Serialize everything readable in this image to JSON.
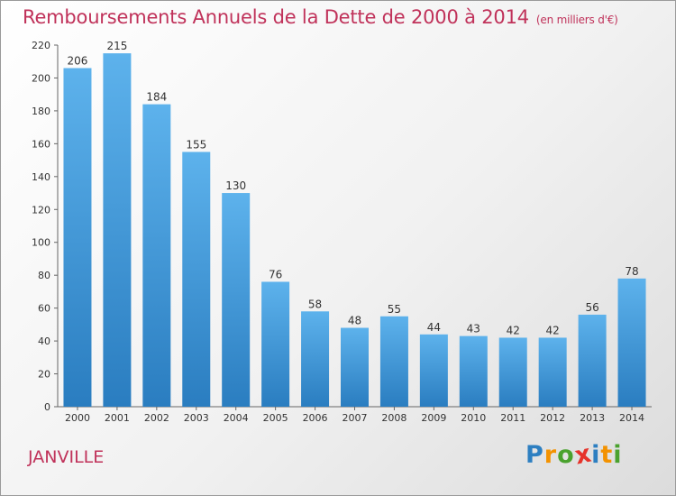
{
  "title": "Remboursements Annuels de la Dette de 2000 à 2014",
  "unit": "(en milliers d'€)",
  "city": "JANVILLE",
  "logo": {
    "letters": [
      "P",
      "r",
      "o",
      "x",
      "i",
      "t",
      "i"
    ],
    "colors": [
      "#2d7fc1",
      "#f39200",
      "#4aa22e",
      "#e6332a",
      "#2d7fc1",
      "#f39200",
      "#4aa22e"
    ]
  },
  "colors": {
    "title": "#c0325a",
    "bar_top": "#5db2ec",
    "bar_bottom": "#2a7dc0",
    "axis": "#666666"
  },
  "chart_data": {
    "type": "bar",
    "title": "Remboursements Annuels de la Dette de 2000 à 2014",
    "categories": [
      "2000",
      "2001",
      "2002",
      "2003",
      "2004",
      "2005",
      "2006",
      "2007",
      "2008",
      "2009",
      "2010",
      "2011",
      "2012",
      "2013",
      "2014"
    ],
    "values": [
      206,
      215,
      184,
      155,
      130,
      76,
      58,
      48,
      55,
      44,
      43,
      42,
      42,
      56,
      78
    ],
    "ylim": [
      0,
      220
    ],
    "yticks": [
      0,
      20,
      40,
      60,
      80,
      100,
      120,
      140,
      160,
      180,
      200,
      220
    ],
    "grid": false,
    "legend": "none",
    "data_labels": true
  }
}
